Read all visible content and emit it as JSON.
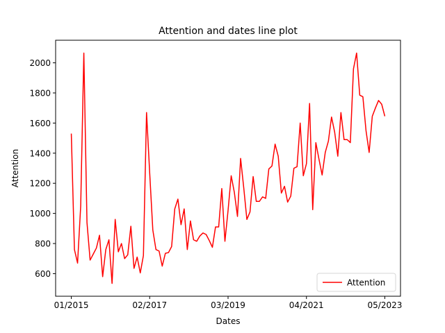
{
  "chart_data": {
    "type": "line",
    "title": "Attention and dates line plot",
    "xlabel": "Dates",
    "ylabel": "Attention",
    "x_tick_labels": [
      "01/2015",
      "02/2017",
      "03/2019",
      "04/2021",
      "05/2023"
    ],
    "x_tick_months": [
      0,
      25,
      50,
      75,
      100
    ],
    "y_ticks": [
      600,
      800,
      1000,
      1200,
      1400,
      1600,
      1800,
      2000
    ],
    "xlim": [
      -5,
      105
    ],
    "ylim": [
      450,
      2150
    ],
    "grid": false,
    "legend_position": "lower-right",
    "series": [
      {
        "name": "Attention",
        "color": "#ff0000",
        "x": [
          0,
          1,
          2,
          3,
          4,
          5,
          6,
          7,
          8,
          9,
          10,
          11,
          12,
          13,
          14,
          15,
          16,
          17,
          18,
          19,
          20,
          21,
          22,
          23,
          24,
          25,
          26,
          27,
          28,
          29,
          30,
          31,
          32,
          33,
          34,
          35,
          36,
          37,
          38,
          39,
          40,
          41,
          42,
          43,
          44,
          45,
          46,
          47,
          48,
          49,
          50,
          51,
          52,
          53,
          54,
          55,
          56,
          57,
          58,
          59,
          60,
          61,
          62,
          63,
          64,
          65,
          66,
          67,
          68,
          69,
          70,
          71,
          72,
          73,
          74,
          75,
          76,
          77,
          78,
          79,
          80,
          81,
          82,
          83,
          84,
          85,
          86,
          87,
          88,
          89,
          90,
          91,
          92,
          93,
          94,
          95,
          96,
          97,
          98,
          99,
          100
        ],
        "values": [
          1530,
          760,
          670,
          1050,
          2065,
          940,
          690,
          730,
          770,
          855,
          580,
          760,
          825,
          535,
          960,
          745,
          800,
          700,
          725,
          915,
          635,
          710,
          605,
          720,
          1670,
          1270,
          890,
          760,
          750,
          650,
          735,
          740,
          780,
          1030,
          1095,
          925,
          1030,
          760,
          950,
          825,
          815,
          850,
          870,
          860,
          820,
          775,
          910,
          910,
          1165,
          815,
          1020,
          1250,
          1140,
          980,
          1365,
          1170,
          960,
          1010,
          1245,
          1080,
          1080,
          1110,
          1100,
          1295,
          1315,
          1460,
          1380,
          1135,
          1180,
          1075,
          1115,
          1300,
          1310,
          1600,
          1250,
          1330,
          1730,
          1025,
          1470,
          1360,
          1255,
          1405,
          1480,
          1640,
          1540,
          1380,
          1670,
          1490,
          1490,
          1470,
          1960,
          2065,
          1785,
          1775,
          1550,
          1405,
          1645,
          1700,
          1750,
          1725,
          1645
        ]
      }
    ]
  }
}
